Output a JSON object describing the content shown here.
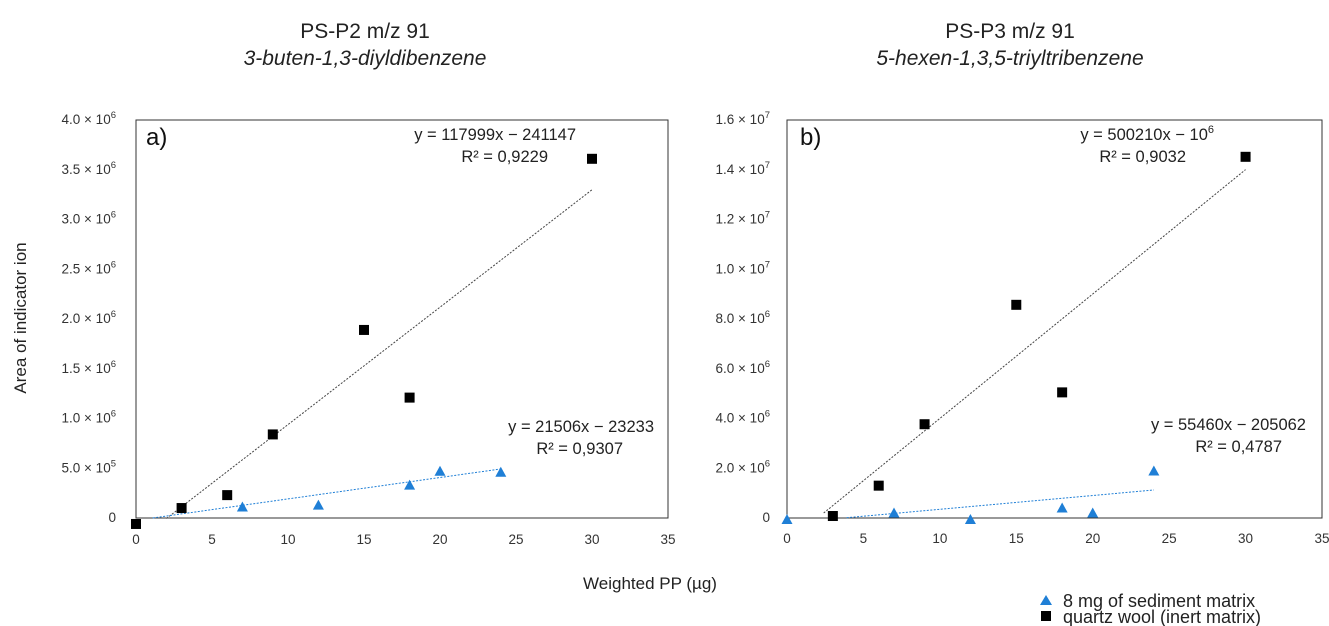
{
  "shared": {
    "ylabel": "Area of indicator ion",
    "xlabel": "Weighted PP (µg)",
    "legend": [
      {
        "name": "8 mg of sediment matrix",
        "marker": "triangle",
        "color": "#1f7fd6"
      },
      {
        "name": "quartz wool (inert matrix)",
        "marker": "square",
        "color": "#000000"
      }
    ]
  },
  "chart_data": [
    {
      "type": "scatter",
      "title": "PS-P2 m/z 91",
      "subtitle": "3-buten-1,3-diyldibenzene",
      "panel_label": "a)",
      "xlim": [
        0,
        35
      ],
      "xticks": [
        0,
        5,
        10,
        15,
        20,
        25,
        30,
        35
      ],
      "ylim": [
        0,
        4000000
      ],
      "yticks": [
        {
          "value": 0,
          "mant": "0",
          "exp": ""
        },
        {
          "value": 500000,
          "mant": "5.0 × 10",
          "exp": "5"
        },
        {
          "value": 1000000,
          "mant": "1.0 × 10",
          "exp": "6"
        },
        {
          "value": 1500000,
          "mant": "1.5 × 10",
          "exp": "6"
        },
        {
          "value": 2000000,
          "mant": "2.0 × 10",
          "exp": "6"
        },
        {
          "value": 2500000,
          "mant": "2.5 × 10",
          "exp": "6"
        },
        {
          "value": 3000000,
          "mant": "3.0 × 10",
          "exp": "6"
        },
        {
          "value": 3500000,
          "mant": "3.5 × 10",
          "exp": "6"
        },
        {
          "value": 4000000,
          "mant": "4.0 × 10",
          "exp": "6"
        }
      ],
      "grid": false,
      "series": [
        {
          "name": "quartz wool (inert matrix)",
          "marker": "square",
          "color": "#000000",
          "x": [
            0,
            3,
            6,
            9,
            15,
            18,
            30
          ],
          "y": [
            -60000,
            100000,
            230000,
            840000,
            1890000,
            1210000,
            3610000
          ],
          "trend": {
            "slope": 117999,
            "intercept": -241147,
            "x_range": [
              2.0,
              30
            ],
            "color": "#444444",
            "equation": "y = 117999x − 241147",
            "r2": "R² = 0,9229"
          }
        },
        {
          "name": "8 mg of sediment matrix",
          "marker": "triangle",
          "color": "#1f7fd6",
          "x": [
            7,
            12,
            18,
            20,
            24
          ],
          "y": [
            110000,
            130000,
            330000,
            470000,
            460000
          ],
          "trend": {
            "slope": 21506,
            "intercept": -23233,
            "x_range": [
              1.1,
              24
            ],
            "color": "#1f7fd6",
            "equation": "y = 21506x − 23233",
            "r2": "R² = 0,9307"
          }
        }
      ]
    },
    {
      "type": "scatter",
      "title": "PS-P3 m/z 91",
      "subtitle": "5-hexen-1,3,5-triyltribenzene",
      "panel_label": "b)",
      "xlim": [
        0,
        35
      ],
      "xticks": [
        0,
        5,
        10,
        15,
        20,
        25,
        30,
        35
      ],
      "ylim": [
        0,
        16000000
      ],
      "yticks": [
        {
          "value": 0,
          "mant": "0",
          "exp": ""
        },
        {
          "value": 2000000,
          "mant": "2.0 × 10",
          "exp": "6"
        },
        {
          "value": 4000000,
          "mant": "4.0 × 10",
          "exp": "6"
        },
        {
          "value": 6000000,
          "mant": "6.0 × 10",
          "exp": "6"
        },
        {
          "value": 8000000,
          "mant": "8.0 × 10",
          "exp": "6"
        },
        {
          "value": 10000000,
          "mant": "1.0 × 10",
          "exp": "7"
        },
        {
          "value": 12000000,
          "mant": "1.2 × 10",
          "exp": "7"
        },
        {
          "value": 14000000,
          "mant": "1.4 × 10",
          "exp": "7"
        },
        {
          "value": 16000000,
          "mant": "1.6 × 10",
          "exp": "7"
        }
      ],
      "grid": false,
      "series": [
        {
          "name": "quartz wool (inert matrix)",
          "marker": "square",
          "color": "#000000",
          "x": [
            3,
            6,
            9,
            15,
            18,
            30
          ],
          "y": [
            80000,
            1300000,
            3770000,
            8570000,
            5050000,
            14520000
          ],
          "trend": {
            "slope": 500210,
            "intercept": -1000000,
            "x_range": [
              2.4,
              30
            ],
            "color": "#444444",
            "equation_mant": "y = 500210x − 10",
            "equation_exp": "6",
            "r2": "R² = 0,9032"
          }
        },
        {
          "name": "8 mg of sediment matrix",
          "marker": "triangle",
          "color": "#1f7fd6",
          "x": [
            0,
            7,
            12,
            18,
            20,
            24
          ],
          "y": [
            -60000,
            200000,
            -60000,
            400000,
            200000,
            1890000
          ],
          "trend": {
            "slope": 55460,
            "intercept": -205062,
            "x_range": [
              3.9,
              24
            ],
            "color": "#1f7fd6",
            "equation": "y = 55460x − 205062",
            "r2": "R² = 0,4787"
          }
        }
      ]
    }
  ]
}
